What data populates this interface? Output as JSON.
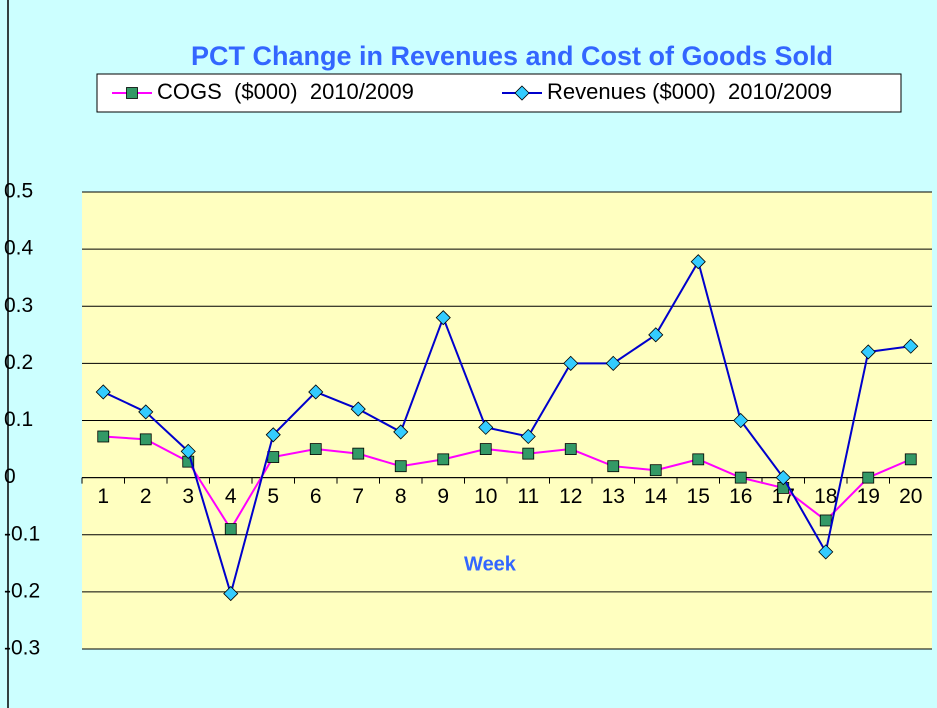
{
  "chart_data": {
    "type": "line",
    "title": "PCT Change in Revenues and Cost of Goods Sold",
    "x_label": "Week",
    "categories": [
      "1",
      "2",
      "3",
      "4",
      "5",
      "6",
      "7",
      "8",
      "9",
      "10",
      "11",
      "12",
      "13",
      "14",
      "15",
      "16",
      "17",
      "18",
      "19",
      "20"
    ],
    "series": [
      {
        "name": "COGS  ($000)  2010/2009",
        "color": "#ff00ff",
        "marker_color": "#339966",
        "marker": "square",
        "values": [
          0.072,
          0.067,
          0.028,
          -0.09,
          0.036,
          0.05,
          0.042,
          0.02,
          0.032,
          0.05,
          0.042,
          0.05,
          0.02,
          0.013,
          0.032,
          0,
          -0.018,
          -0.075,
          0,
          0.032
        ]
      },
      {
        "name": "Revenues ($000)  2010/2009",
        "color": "#0000cc",
        "marker_color": "#33ccff",
        "marker": "diamond",
        "values": [
          0.15,
          0.115,
          0.046,
          -0.203,
          0.075,
          0.15,
          0.12,
          0.08,
          0.28,
          0.088,
          0.072,
          0.2,
          0.2,
          0.25,
          0.378,
          0.1,
          0,
          -0.13,
          0.22,
          0.23
        ]
      }
    ],
    "ylim": [
      -0.3,
      0.5
    ],
    "yticks": [
      -0.3,
      -0.2,
      -0.1,
      0,
      0.1,
      0.2,
      0.3,
      0.4,
      0.5
    ],
    "grid": true,
    "legend": "top"
  }
}
